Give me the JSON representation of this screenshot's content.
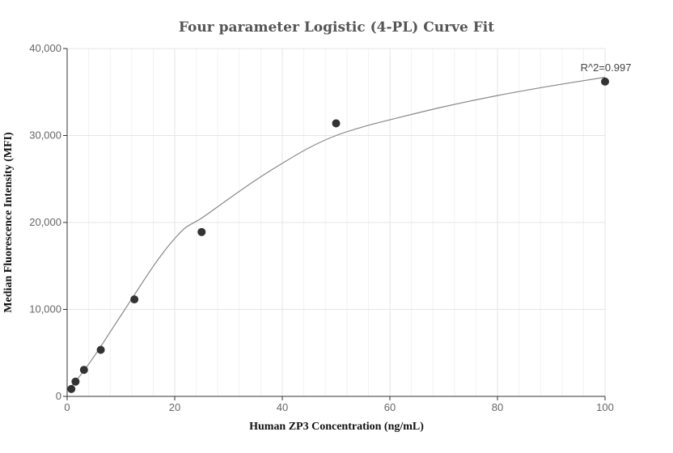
{
  "chart_data": {
    "type": "scatter",
    "title": "Four parameter Logistic (4-PL) Curve Fit",
    "xlabel": "Human ZP3 Concentration (ng/mL)",
    "ylabel": "Median Fluorescence Intensity (MFI)",
    "xlim": [
      0,
      100
    ],
    "ylim": [
      0,
      40000
    ],
    "xticks": [
      0,
      20,
      40,
      60,
      80,
      100
    ],
    "xtick_labels": [
      "0",
      "20",
      "40",
      "60",
      "80",
      "100"
    ],
    "yticks": [
      0,
      10000,
      20000,
      30000,
      40000
    ],
    "ytick_labels": [
      "0",
      "10,000",
      "20,000",
      "30,000",
      "40,000"
    ],
    "grid": true,
    "points": [
      {
        "x": 0.78,
        "y": 850
      },
      {
        "x": 1.56,
        "y": 1700
      },
      {
        "x": 3.13,
        "y": 3050
      },
      {
        "x": 6.25,
        "y": 5350
      },
      {
        "x": 12.5,
        "y": 11150
      },
      {
        "x": 25,
        "y": 18900
      },
      {
        "x": 50,
        "y": 31400
      },
      {
        "x": 100,
        "y": 36200
      }
    ],
    "fit_curve": [
      [
        0,
        600
      ],
      [
        2,
        2050
      ],
      [
        4,
        3700
      ],
      [
        6,
        5500
      ],
      [
        8,
        7400
      ],
      [
        10,
        9300
      ],
      [
        12,
        11200
      ],
      [
        14,
        13100
      ],
      [
        16,
        14950
      ],
      [
        18,
        16650
      ],
      [
        20,
        18150
      ],
      [
        22,
        19400
      ],
      [
        25,
        20500
      ],
      [
        30,
        22700
      ],
      [
        35,
        24850
      ],
      [
        40,
        26800
      ],
      [
        45,
        28600
      ],
      [
        50,
        30000
      ],
      [
        55,
        31000
      ],
      [
        60,
        31800
      ],
      [
        70,
        33300
      ],
      [
        80,
        34600
      ],
      [
        90,
        35700
      ],
      [
        100,
        36700
      ]
    ],
    "annotation": "R^2=0.997",
    "colors": {
      "points": "#333333",
      "curve": "#888888",
      "grid": "#e6e6e6",
      "minor_grid": "#f2f2f2"
    }
  }
}
